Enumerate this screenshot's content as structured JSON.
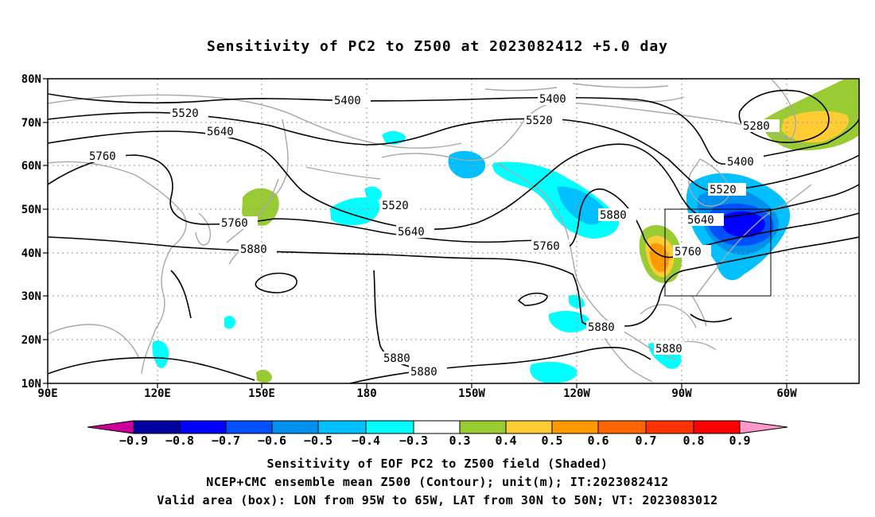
{
  "title": "Sensitivity of PC2 to Z500 at 2023082412 +5.0 day",
  "map": {
    "lat_labels": [
      "80N",
      "70N",
      "60N",
      "50N",
      "40N",
      "30N",
      "20N",
      "10N"
    ],
    "lon_labels": [
      "90E",
      "120E",
      "150E",
      "180",
      "150W",
      "120W",
      "90W",
      "60W"
    ],
    "contour_labels": [
      "5400",
      "5400",
      "5520",
      "5520",
      "5520",
      "5280",
      "5400",
      "5520",
      "5640",
      "5640",
      "5640",
      "5760",
      "5760",
      "5760",
      "5760",
      "5880",
      "5880",
      "5880",
      "5880",
      "5880",
      "5880"
    ],
    "valid_box": {
      "lon_from": "95W",
      "lon_to": "65W",
      "lat_from": "30N",
      "lat_to": "50N"
    },
    "colors": {
      "coast": "#a8a8a8",
      "contour": "#000000",
      "grid": "#999999"
    }
  },
  "colorbar": {
    "labels": [
      "−0.9",
      "−0.8",
      "−0.7",
      "−0.6",
      "−0.5",
      "−0.4",
      "−0.3",
      "0.3",
      "0.4",
      "0.5",
      "0.6",
      "0.7",
      "0.8",
      "0.9"
    ],
    "colors": [
      "#cc0099",
      "#0000a0",
      "#0000ff",
      "#0050ff",
      "#0090ee",
      "#00c0ff",
      "#00ffff",
      "#ffffff",
      "#99cc33",
      "#ffcc33",
      "#ff9900",
      "#ff6600",
      "#ff3300",
      "#ff0000",
      "#ff99cc"
    ]
  },
  "captions": [
    "Sensitivity of EOF PC2 to Z500 field (Shaded)",
    "NCEP+CMC ensemble mean Z500 (Contour); unit(m); IT:2023082412",
    "Valid area (box): LON from 95W to 65W, LAT from 30N to 50N; VT: 2023083012"
  ]
}
